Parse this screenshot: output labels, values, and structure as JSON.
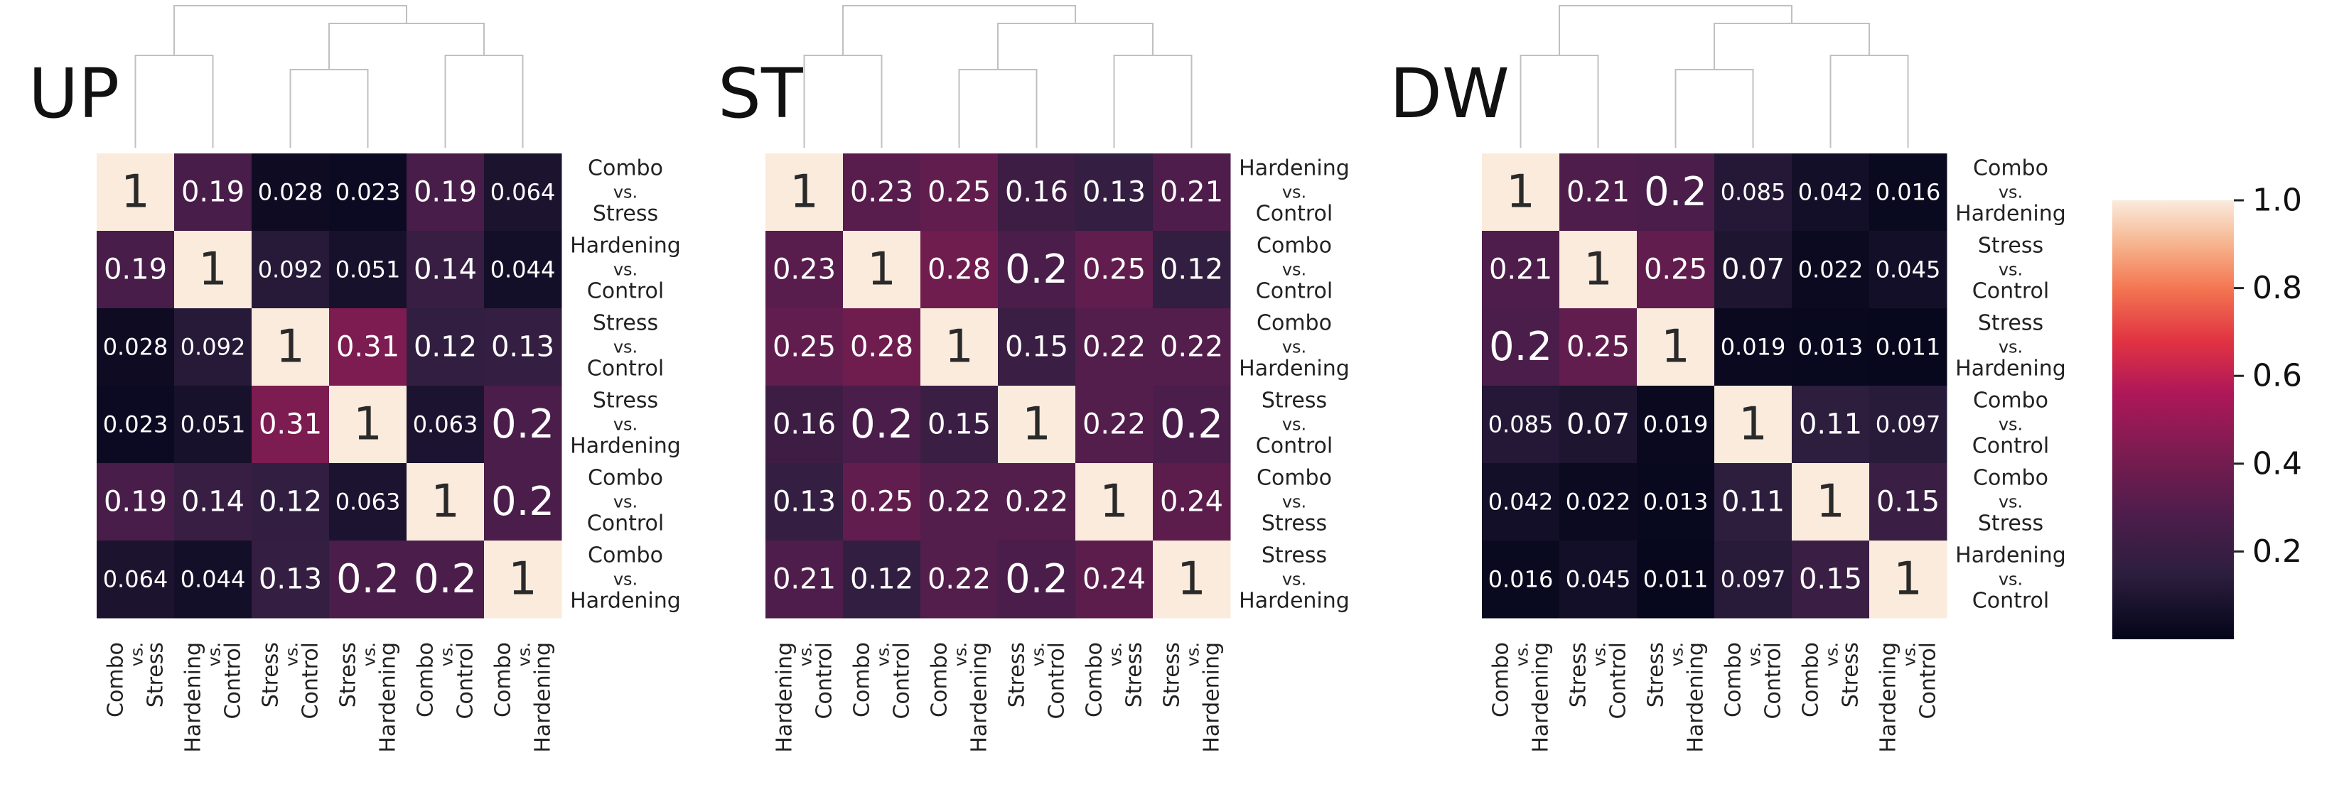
{
  "chart_data": [
    {
      "type": "heatmap",
      "title": "UP",
      "row_labels": [
        [
          "Combo",
          "vs.",
          "Stress"
        ],
        [
          "Hardening",
          "vs.",
          "Control"
        ],
        [
          "Stress",
          "vs.",
          "Control"
        ],
        [
          "Stress",
          "vs.",
          "Hardening"
        ],
        [
          "Combo",
          "vs.",
          "Control"
        ],
        [
          "Combo",
          "vs.",
          "Hardening"
        ]
      ],
      "col_labels": [
        [
          "Combo",
          "vs.",
          "Stress"
        ],
        [
          "Hardening",
          "vs.",
          "Control"
        ],
        [
          "Stress",
          "vs.",
          "Control"
        ],
        [
          "Stress",
          "vs.",
          "Hardening"
        ],
        [
          "Combo",
          "vs.",
          "Control"
        ],
        [
          "Combo",
          "vs.",
          "Hardening"
        ]
      ],
      "values": [
        [
          1,
          0.19,
          0.028,
          0.023,
          0.19,
          0.064
        ],
        [
          0.19,
          1,
          0.092,
          0.051,
          0.14,
          0.044
        ],
        [
          0.028,
          0.092,
          1,
          0.31,
          0.12,
          0.13
        ],
        [
          0.023,
          0.051,
          0.31,
          1,
          0.063,
          0.2
        ],
        [
          0.19,
          0.14,
          0.12,
          0.063,
          1,
          0.2
        ],
        [
          0.064,
          0.044,
          0.13,
          0.2,
          0.2,
          1
        ]
      ],
      "cell_labels": [
        [
          "1",
          "0.19",
          "0.028",
          "0.023",
          "0.19",
          "0.064"
        ],
        [
          "0.19",
          "1",
          "0.092",
          "0.051",
          "0.14",
          "0.044"
        ],
        [
          "0.028",
          "0.092",
          "1",
          "0.31",
          "0.12",
          "0.13"
        ],
        [
          "0.023",
          "0.051",
          "0.31",
          "1",
          "0.063",
          "0.2"
        ],
        [
          "0.19",
          "0.14",
          "0.12",
          "0.063",
          "1",
          "0.2"
        ],
        [
          "0.064",
          "0.044",
          "0.13",
          "0.2",
          "0.2",
          "1"
        ]
      ],
      "dendrogram": [
        [
          1,
          2,
          0
        ],
        [
          3,
          4,
          0
        ],
        [
          5,
          6,
          1
        ],
        [
          7,
          8,
          0
        ],
        [
          9,
          10,
          1
        ],
        [
          11,
          12,
          2
        ]
      ]
    },
    {
      "type": "heatmap",
      "title": "ST",
      "row_labels": [
        [
          "Hardening",
          "vs.",
          "Control"
        ],
        [
          "Combo",
          "vs.",
          "Control"
        ],
        [
          "Combo",
          "vs.",
          "Hardening"
        ],
        [
          "Stress",
          "vs.",
          "Control"
        ],
        [
          "Combo",
          "vs.",
          "Stress"
        ],
        [
          "Stress",
          "vs.",
          "Hardening"
        ]
      ],
      "col_labels": [
        [
          "Hardening",
          "vs.",
          "Control"
        ],
        [
          "Combo",
          "vs.",
          "Control"
        ],
        [
          "Combo",
          "vs.",
          "Hardening"
        ],
        [
          "Stress",
          "vs.",
          "Control"
        ],
        [
          "Combo",
          "vs.",
          "Stress"
        ],
        [
          "Stress",
          "vs.",
          "Hardening"
        ]
      ],
      "values": [
        [
          1,
          0.23,
          0.25,
          0.16,
          0.13,
          0.21
        ],
        [
          0.23,
          1,
          0.28,
          0.2,
          0.25,
          0.12
        ],
        [
          0.25,
          0.28,
          1,
          0.15,
          0.22,
          0.22
        ],
        [
          0.16,
          0.2,
          0.15,
          1,
          0.22,
          0.2
        ],
        [
          0.13,
          0.25,
          0.22,
          0.22,
          1,
          0.24
        ],
        [
          0.21,
          0.12,
          0.22,
          0.2,
          0.24,
          1
        ]
      ],
      "cell_labels": [
        [
          "1",
          "0.23",
          "0.25",
          "0.16",
          "0.13",
          "0.21"
        ],
        [
          "0.23",
          "1",
          "0.28",
          "0.2",
          "0.25",
          "0.12"
        ],
        [
          "0.25",
          "0.28",
          "1",
          "0.15",
          "0.22",
          "0.22"
        ],
        [
          "0.16",
          "0.2",
          "0.15",
          "1",
          "0.22",
          "0.2"
        ],
        [
          "0.13",
          "0.25",
          "0.22",
          "0.22",
          "1",
          "0.24"
        ],
        [
          "0.21",
          "0.12",
          "0.22",
          "0.2",
          "0.24",
          "1"
        ]
      ],
      "dendrogram": [
        [
          1,
          2,
          0
        ],
        [
          3,
          4,
          0
        ],
        [
          5,
          6,
          1
        ],
        [
          7,
          8,
          0
        ],
        [
          9,
          10,
          1
        ],
        [
          11,
          12,
          2
        ]
      ]
    },
    {
      "type": "heatmap",
      "title": "DW",
      "row_labels": [
        [
          "Combo",
          "vs.",
          "Hardening"
        ],
        [
          "Stress",
          "vs.",
          "Control"
        ],
        [
          "Stress",
          "vs.",
          "Hardening"
        ],
        [
          "Combo",
          "vs.",
          "Control"
        ],
        [
          "Combo",
          "vs.",
          "Stress"
        ],
        [
          "Hardening",
          "vs.",
          "Control"
        ]
      ],
      "col_labels": [
        [
          "Combo",
          "vs.",
          "Hardening"
        ],
        [
          "Stress",
          "vs.",
          "Control"
        ],
        [
          "Stress",
          "vs.",
          "Hardening"
        ],
        [
          "Combo",
          "vs.",
          "Control"
        ],
        [
          "Combo",
          "vs.",
          "Stress"
        ],
        [
          "Hardening",
          "vs.",
          "Control"
        ]
      ],
      "values": [
        [
          1,
          0.21,
          0.2,
          0.085,
          0.042,
          0.016
        ],
        [
          0.21,
          1,
          0.25,
          0.07,
          0.022,
          0.045
        ],
        [
          0.2,
          0.25,
          1,
          0.019,
          0.013,
          0.011
        ],
        [
          0.085,
          0.07,
          0.019,
          1,
          0.11,
          0.097
        ],
        [
          0.042,
          0.022,
          0.013,
          0.11,
          1,
          0.15
        ],
        [
          0.016,
          0.045,
          0.011,
          0.097,
          0.15,
          1
        ]
      ],
      "cell_labels": [
        [
          "1",
          "0.21",
          "0.2",
          "0.085",
          "0.042",
          "0.016"
        ],
        [
          "0.21",
          "1",
          "0.25",
          "0.07",
          "0.022",
          "0.045"
        ],
        [
          "0.2",
          "0.25",
          "1",
          "0.019",
          "0.013",
          "0.011"
        ],
        [
          "0.085",
          "0.07",
          "0.019",
          "1",
          "0.11",
          "0.097"
        ],
        [
          "0.042",
          "0.022",
          "0.013",
          "0.11",
          "1",
          "0.15"
        ],
        [
          "0.016",
          "0.045",
          "0.011",
          "0.097",
          "0.15",
          "1"
        ]
      ],
      "dendrogram": [
        [
          1,
          2,
          0
        ],
        [
          3,
          4,
          0
        ],
        [
          5,
          6,
          1
        ],
        [
          7,
          8,
          0
        ],
        [
          9,
          10,
          1
        ],
        [
          11,
          12,
          2
        ]
      ]
    }
  ],
  "colorbar": {
    "colormap": "rocket",
    "vmin": 0,
    "vmax": 1.0,
    "ticks": [
      0.2,
      0.4,
      0.6,
      0.8,
      1.0
    ],
    "tick_labels": [
      "0.2",
      "0.4",
      "0.6",
      "0.8",
      "1.0"
    ]
  },
  "colors": {
    "dendrogram_line": "#c0c0c0",
    "text_dark_cell": "#ffffff",
    "text_light_cell": "#2a2a2a",
    "label_text": "#222222"
  }
}
